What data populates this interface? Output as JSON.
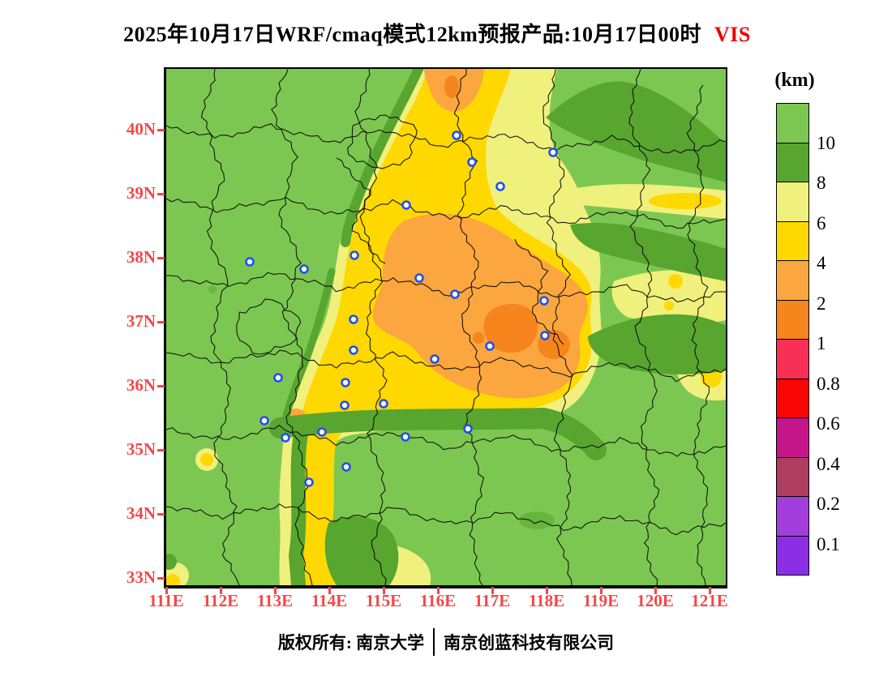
{
  "title": {
    "main": "2025年10月17日WRF/cmaq模式12km预报产品:10月17日00时",
    "tag": "VIS",
    "tag_color": "#f10000"
  },
  "colorbar": {
    "unit": "(km)",
    "tick_labels": [
      "10",
      "8",
      "6",
      "4",
      "2",
      "1",
      "0.8",
      "0.6",
      "0.4",
      "0.2",
      "0.1"
    ],
    "colors_top_to_bottom": [
      "#7cc751",
      "#58a52f",
      "#f0f07d",
      "#ffd800",
      "#fba63e",
      "#f5851c",
      "#f93056",
      "#fb0505",
      "#c4158a",
      "#af3d60",
      "#a13edc",
      "#8b2fe6"
    ]
  },
  "axes": {
    "lat_labels": [
      "40N",
      "39N",
      "38N",
      "37N",
      "36N",
      "35N",
      "34N",
      "33N"
    ],
    "lon_labels": [
      "111E",
      "112E",
      "113E",
      "114E",
      "115E",
      "116E",
      "117E",
      "118E",
      "119E",
      "120E",
      "121E"
    ],
    "label_color": "#f64747"
  },
  "map": {
    "level_colors": {
      "green": "#7cc751",
      "dark_green": "#58a52f",
      "pale_yellow": "#f0f07d",
      "yellow": "#ffd800",
      "orange": "#fba63e",
      "deep_orange": "#f5851c"
    },
    "marker_color": "#2150ee",
    "city_markers": [
      [
        358,
        82
      ],
      [
        377,
        115
      ],
      [
        412,
        145
      ],
      [
        477,
        103
      ],
      [
        296,
        168
      ],
      [
        103,
        238
      ],
      [
        170,
        247
      ],
      [
        232,
        230
      ],
      [
        312,
        258
      ],
      [
        356,
        278
      ],
      [
        466,
        286
      ],
      [
        231,
        309
      ],
      [
        467,
        329
      ],
      [
        399,
        342
      ],
      [
        331,
        358
      ],
      [
        231,
        347
      ],
      [
        138,
        381
      ],
      [
        221,
        387
      ],
      [
        220,
        415
      ],
      [
        268,
        413
      ],
      [
        121,
        434
      ],
      [
        372,
        444
      ],
      [
        147,
        455
      ],
      [
        192,
        448
      ],
      [
        295,
        454
      ],
      [
        222,
        491
      ],
      [
        176,
        510
      ]
    ]
  },
  "footer": {
    "left": "版权所有: 南京大学",
    "right": "南京创蓝科技有限公司"
  }
}
